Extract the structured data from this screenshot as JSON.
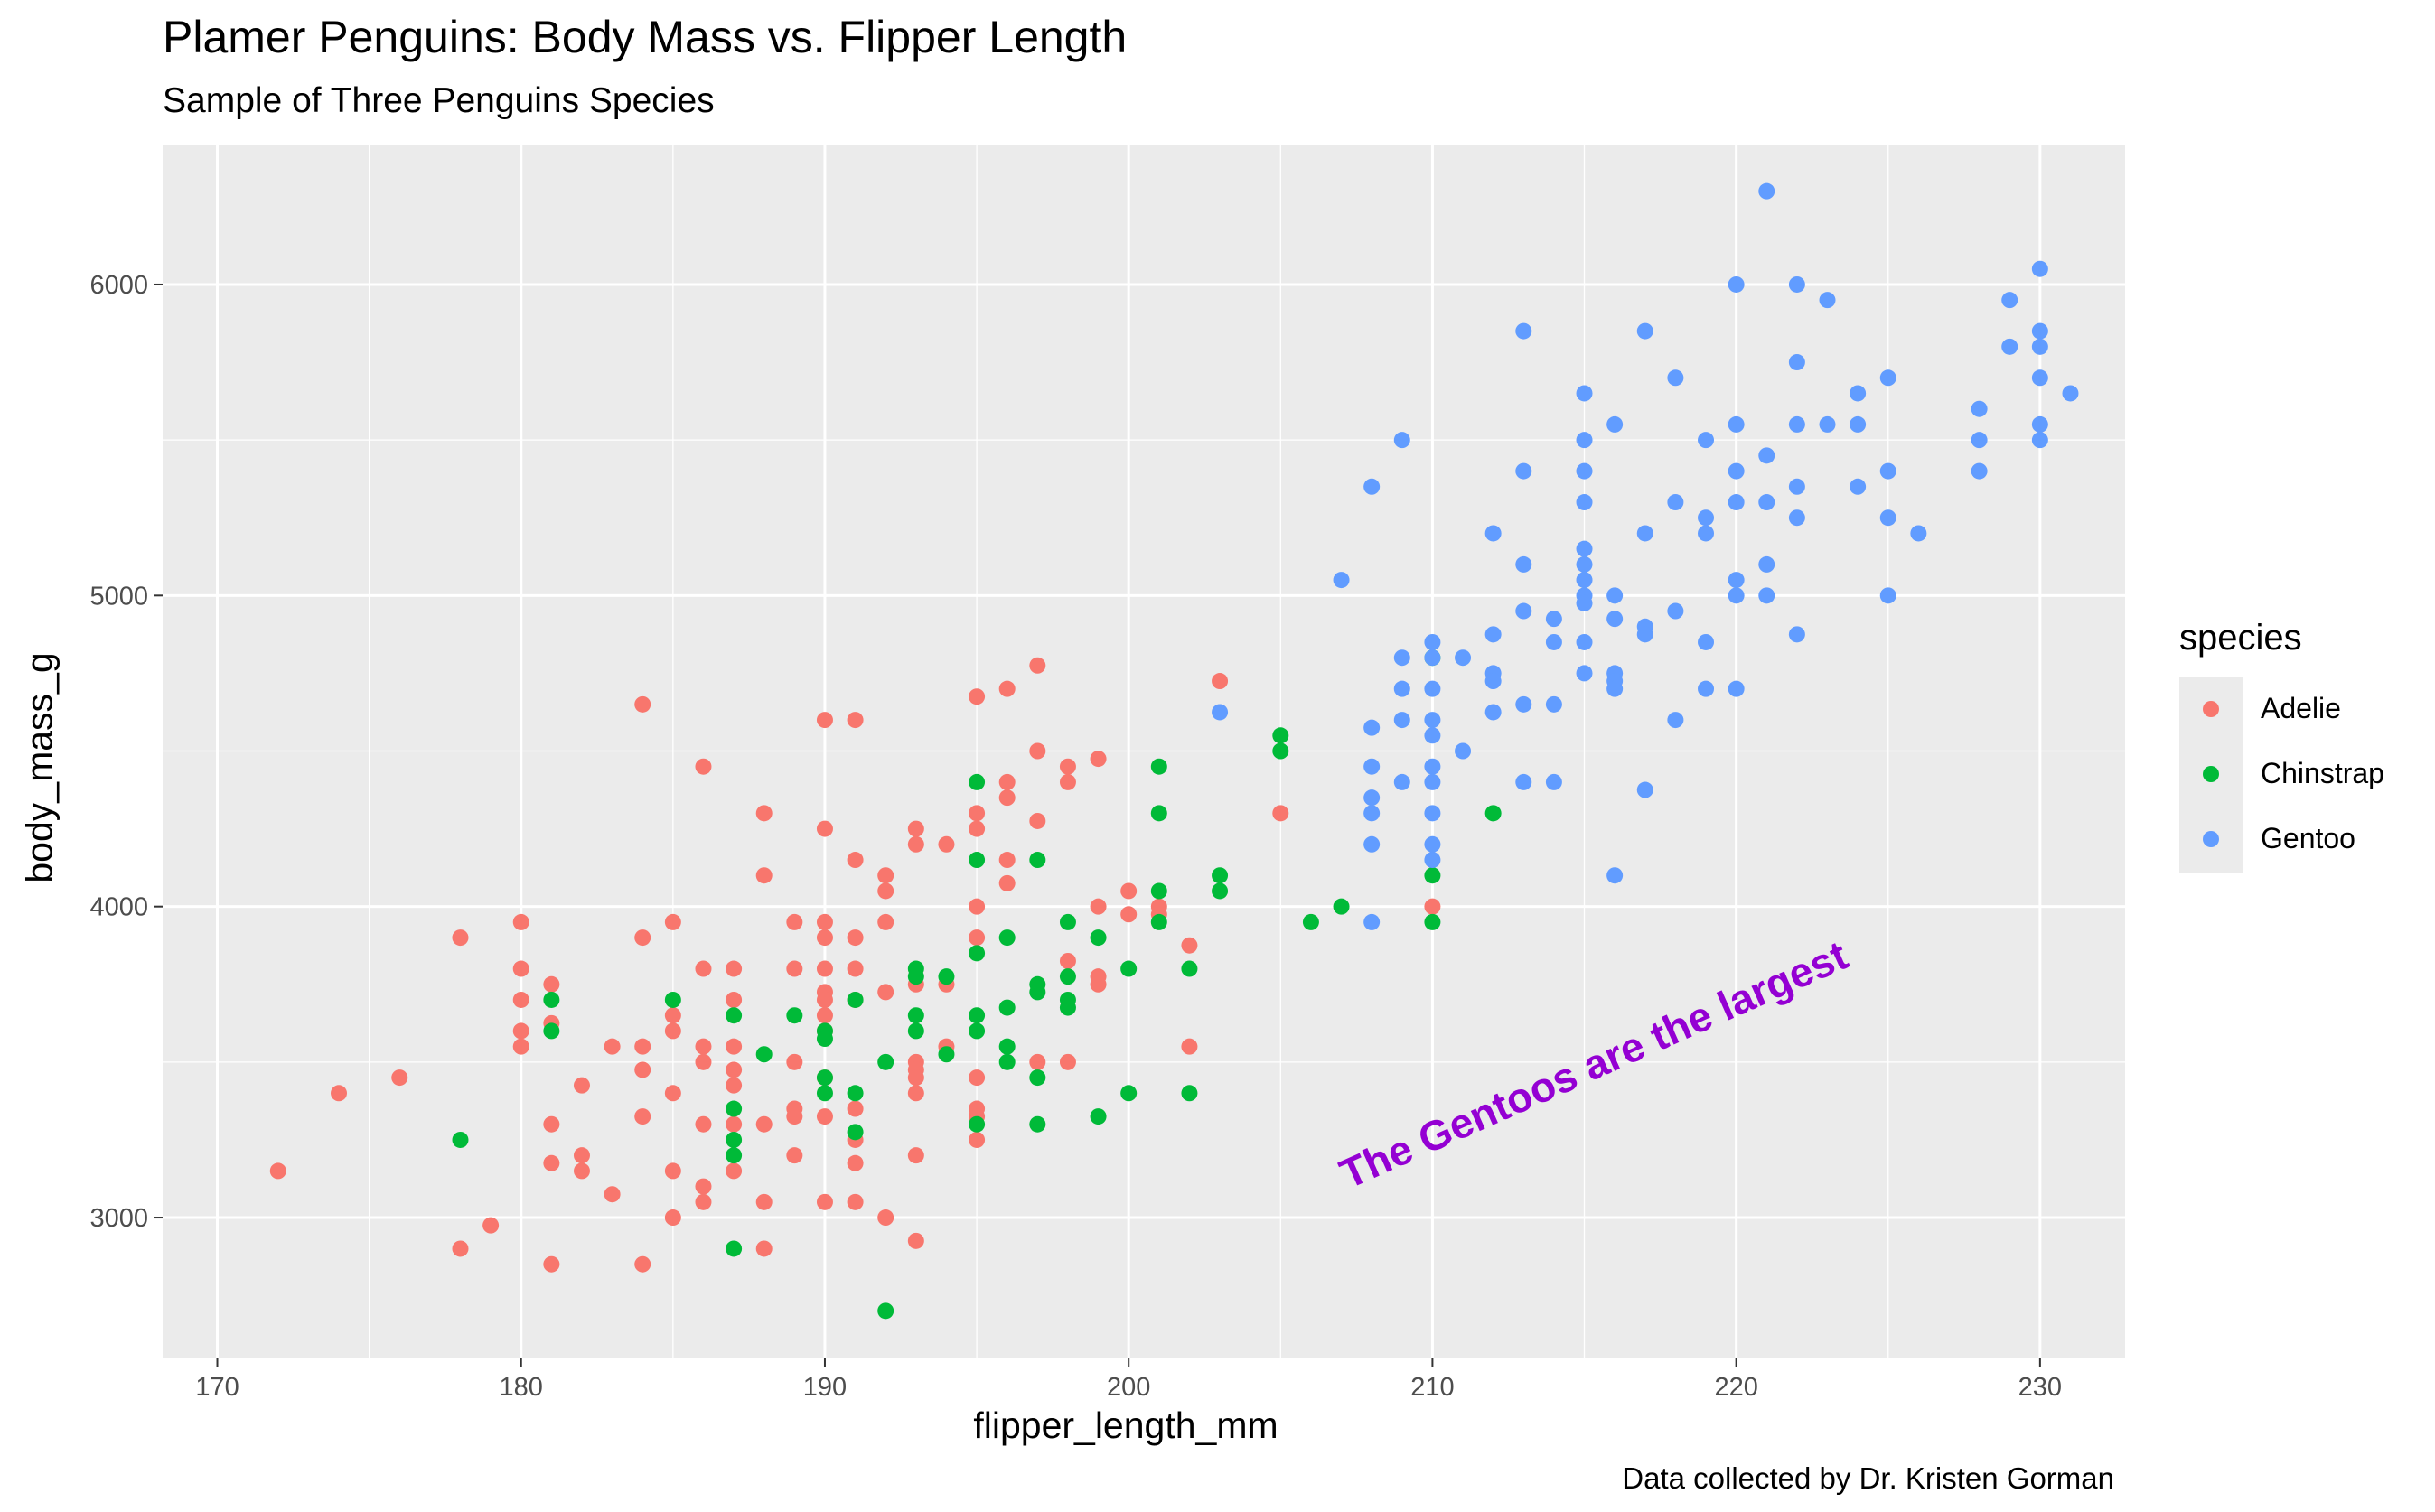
{
  "colors": {
    "Adelie": "#F8766D",
    "Chinstrap": "#00BA38",
    "Gentoo": "#619CFF",
    "annotation": "#9400D3"
  },
  "chart_data": {
    "type": "scatter",
    "title": "Plamer Penguins: Body Mass vs. Flipper Length",
    "subtitle": "Sample of Three Penguins Species",
    "caption": "Data collected by Dr. Kristen Gorman",
    "xlabel": "flipper_length_mm",
    "ylabel": "body_mass_g",
    "xlim": [
      168.2,
      232.8
    ],
    "ylim": [
      2550,
      6450
    ],
    "xticks": [
      170,
      180,
      190,
      200,
      210,
      220,
      230
    ],
    "yticks": [
      3000,
      4000,
      5000,
      6000
    ],
    "grid": true,
    "legend": {
      "title": "species",
      "placement": "right",
      "entries": [
        "Adelie",
        "Chinstrap",
        "Gentoo"
      ]
    },
    "annotation": {
      "text": "The Gentoos are the largest",
      "x": 210,
      "y": 3470,
      "angle_deg": -24
    },
    "series": [
      {
        "name": "Adelie",
        "points": [
          [
            172,
            3150
          ],
          [
            174,
            3400
          ],
          [
            176,
            3450
          ],
          [
            178,
            3900
          ],
          [
            178,
            2900
          ],
          [
            179,
            2975
          ],
          [
            180,
            3950
          ],
          [
            180,
            3800
          ],
          [
            180,
            3700
          ],
          [
            180,
            3600
          ],
          [
            180,
            3550
          ],
          [
            181,
            3750
          ],
          [
            181,
            3625
          ],
          [
            181,
            3300
          ],
          [
            181,
            3175
          ],
          [
            181,
            2850
          ],
          [
            182,
            3425
          ],
          [
            182,
            3200
          ],
          [
            182,
            3150
          ],
          [
            183,
            3550
          ],
          [
            183,
            3075
          ],
          [
            184,
            4650
          ],
          [
            184,
            3900
          ],
          [
            184,
            3550
          ],
          [
            184,
            3475
          ],
          [
            184,
            3325
          ],
          [
            184,
            2850
          ],
          [
            185,
            3950
          ],
          [
            185,
            3650
          ],
          [
            185,
            3600
          ],
          [
            185,
            3400
          ],
          [
            185,
            3150
          ],
          [
            185,
            3000
          ],
          [
            186,
            4450
          ],
          [
            186,
            3800
          ],
          [
            186,
            3550
          ],
          [
            186,
            3500
          ],
          [
            186,
            3300
          ],
          [
            186,
            3100
          ],
          [
            186,
            3050
          ],
          [
            187,
            3800
          ],
          [
            187,
            3700
          ],
          [
            187,
            3550
          ],
          [
            187,
            3475
          ],
          [
            187,
            3425
          ],
          [
            187,
            3300
          ],
          [
            187,
            3150
          ],
          [
            188,
            4300
          ],
          [
            188,
            4100
          ],
          [
            188,
            3300
          ],
          [
            188,
            3050
          ],
          [
            188,
            2900
          ],
          [
            189,
            3950
          ],
          [
            189,
            3800
          ],
          [
            189,
            3500
          ],
          [
            189,
            3350
          ],
          [
            189,
            3325
          ],
          [
            189,
            3200
          ],
          [
            190,
            4600
          ],
          [
            190,
            4250
          ],
          [
            190,
            3950
          ],
          [
            190,
            3900
          ],
          [
            190,
            3800
          ],
          [
            190,
            3725
          ],
          [
            190,
            3700
          ],
          [
            190,
            3650
          ],
          [
            190,
            3600
          ],
          [
            190,
            3450
          ],
          [
            190,
            3325
          ],
          [
            190,
            3050
          ],
          [
            191,
            4600
          ],
          [
            191,
            4150
          ],
          [
            191,
            3900
          ],
          [
            191,
            3800
          ],
          [
            191,
            3700
          ],
          [
            191,
            3350
          ],
          [
            191,
            3250
          ],
          [
            191,
            3175
          ],
          [
            191,
            3050
          ],
          [
            192,
            4100
          ],
          [
            192,
            4050
          ],
          [
            192,
            3950
          ],
          [
            192,
            3725
          ],
          [
            192,
            3000
          ],
          [
            193,
            4250
          ],
          [
            193,
            4200
          ],
          [
            193,
            3750
          ],
          [
            193,
            3500
          ],
          [
            193,
            3475
          ],
          [
            193,
            3450
          ],
          [
            193,
            3400
          ],
          [
            193,
            3200
          ],
          [
            193,
            2925
          ],
          [
            194,
            4200
          ],
          [
            194,
            3750
          ],
          [
            194,
            3550
          ],
          [
            195,
            4675
          ],
          [
            195,
            4300
          ],
          [
            195,
            4250
          ],
          [
            195,
            4000
          ],
          [
            195,
            3900
          ],
          [
            195,
            3450
          ],
          [
            195,
            3350
          ],
          [
            195,
            3325
          ],
          [
            195,
            3250
          ],
          [
            196,
            4700
          ],
          [
            196,
            4400
          ],
          [
            196,
            4350
          ],
          [
            196,
            4150
          ],
          [
            196,
            4075
          ],
          [
            197,
            4775
          ],
          [
            197,
            4500
          ],
          [
            197,
            4275
          ],
          [
            197,
            3500
          ],
          [
            198,
            4450
          ],
          [
            198,
            4400
          ],
          [
            198,
            3825
          ],
          [
            198,
            3500
          ],
          [
            199,
            4475
          ],
          [
            199,
            4000
          ],
          [
            199,
            3775
          ],
          [
            199,
            3750
          ],
          [
            200,
            4050
          ],
          [
            200,
            3975
          ],
          [
            201,
            4000
          ],
          [
            201,
            3975
          ],
          [
            202,
            3875
          ],
          [
            202,
            3550
          ],
          [
            203,
            4725
          ],
          [
            205,
            4300
          ],
          [
            210,
            4000
          ]
        ]
      },
      {
        "name": "Chinstrap",
        "points": [
          [
            178,
            3250
          ],
          [
            181,
            3700
          ],
          [
            181,
            3600
          ],
          [
            185,
            3700
          ],
          [
            187,
            3650
          ],
          [
            187,
            3350
          ],
          [
            187,
            3250
          ],
          [
            187,
            3200
          ],
          [
            187,
            2900
          ],
          [
            188,
            3525
          ],
          [
            189,
            3650
          ],
          [
            190,
            3600
          ],
          [
            190,
            3575
          ],
          [
            190,
            3450
          ],
          [
            190,
            3400
          ],
          [
            191,
            3700
          ],
          [
            191,
            3400
          ],
          [
            191,
            3275
          ],
          [
            192,
            3500
          ],
          [
            192,
            2700
          ],
          [
            193,
            3800
          ],
          [
            193,
            3775
          ],
          [
            193,
            3650
          ],
          [
            193,
            3600
          ],
          [
            194,
            3775
          ],
          [
            194,
            3525
          ],
          [
            195,
            4400
          ],
          [
            195,
            4150
          ],
          [
            195,
            3850
          ],
          [
            195,
            3650
          ],
          [
            195,
            3600
          ],
          [
            195,
            3300
          ],
          [
            196,
            3900
          ],
          [
            196,
            3675
          ],
          [
            196,
            3550
          ],
          [
            196,
            3500
          ],
          [
            197,
            4150
          ],
          [
            197,
            3750
          ],
          [
            197,
            3725
          ],
          [
            197,
            3450
          ],
          [
            197,
            3300
          ],
          [
            198,
            3950
          ],
          [
            198,
            3775
          ],
          [
            198,
            3700
          ],
          [
            198,
            3675
          ],
          [
            199,
            3900
          ],
          [
            199,
            3325
          ],
          [
            200,
            3800
          ],
          [
            200,
            3400
          ],
          [
            201,
            4450
          ],
          [
            201,
            4300
          ],
          [
            201,
            4050
          ],
          [
            201,
            3950
          ],
          [
            202,
            3800
          ],
          [
            202,
            3400
          ],
          [
            203,
            4100
          ],
          [
            203,
            4050
          ],
          [
            205,
            4550
          ],
          [
            205,
            4500
          ],
          [
            206,
            3950
          ],
          [
            207,
            4000
          ],
          [
            210,
            4800
          ],
          [
            210,
            4100
          ],
          [
            210,
            3950
          ],
          [
            212,
            4300
          ]
        ]
      },
      {
        "name": "Gentoo",
        "points": [
          [
            203,
            4625
          ],
          [
            207,
            5050
          ],
          [
            208,
            5350
          ],
          [
            208,
            4575
          ],
          [
            208,
            4450
          ],
          [
            208,
            4350
          ],
          [
            208,
            4300
          ],
          [
            208,
            4200
          ],
          [
            208,
            3950
          ],
          [
            209,
            5500
          ],
          [
            209,
            4800
          ],
          [
            209,
            4700
          ],
          [
            209,
            4600
          ],
          [
            209,
            4400
          ],
          [
            210,
            4850
          ],
          [
            210,
            4800
          ],
          [
            210,
            4700
          ],
          [
            210,
            4600
          ],
          [
            210,
            4550
          ],
          [
            210,
            4450
          ],
          [
            210,
            4400
          ],
          [
            210,
            4300
          ],
          [
            210,
            4200
          ],
          [
            210,
            4150
          ],
          [
            211,
            4800
          ],
          [
            211,
            4500
          ],
          [
            212,
            5200
          ],
          [
            212,
            4875
          ],
          [
            212,
            4750
          ],
          [
            212,
            4725
          ],
          [
            212,
            4625
          ],
          [
            213,
            5850
          ],
          [
            213,
            5400
          ],
          [
            213,
            5100
          ],
          [
            213,
            4950
          ],
          [
            213,
            4650
          ],
          [
            213,
            4400
          ],
          [
            214,
            4925
          ],
          [
            214,
            4850
          ],
          [
            214,
            4650
          ],
          [
            214,
            4400
          ],
          [
            215,
            5650
          ],
          [
            215,
            5500
          ],
          [
            215,
            5400
          ],
          [
            215,
            5300
          ],
          [
            215,
            5150
          ],
          [
            215,
            5100
          ],
          [
            215,
            5050
          ],
          [
            215,
            5000
          ],
          [
            215,
            4975
          ],
          [
            215,
            4850
          ],
          [
            215,
            4750
          ],
          [
            216,
            5550
          ],
          [
            216,
            5000
          ],
          [
            216,
            4925
          ],
          [
            216,
            4750
          ],
          [
            216,
            4725
          ],
          [
            216,
            4700
          ],
          [
            216,
            4100
          ],
          [
            217,
            5850
          ],
          [
            217,
            5200
          ],
          [
            217,
            4900
          ],
          [
            217,
            4875
          ],
          [
            217,
            4375
          ],
          [
            218,
            5700
          ],
          [
            218,
            5300
          ],
          [
            218,
            4950
          ],
          [
            218,
            4600
          ],
          [
            219,
            5500
          ],
          [
            219,
            5250
          ],
          [
            219,
            5200
          ],
          [
            219,
            4850
          ],
          [
            219,
            4700
          ],
          [
            220,
            6000
          ],
          [
            220,
            5550
          ],
          [
            220,
            5400
          ],
          [
            220,
            5300
          ],
          [
            220,
            5050
          ],
          [
            220,
            5000
          ],
          [
            220,
            4700
          ],
          [
            221,
            6300
          ],
          [
            221,
            5450
          ],
          [
            221,
            5300
          ],
          [
            221,
            5100
          ],
          [
            221,
            5000
          ],
          [
            222,
            6000
          ],
          [
            222,
            5750
          ],
          [
            222,
            5550
          ],
          [
            222,
            5350
          ],
          [
            222,
            5250
          ],
          [
            222,
            4875
          ],
          [
            223,
            5950
          ],
          [
            223,
            5550
          ],
          [
            224,
            5650
          ],
          [
            224,
            5550
          ],
          [
            224,
            5350
          ],
          [
            225,
            5700
          ],
          [
            225,
            5400
          ],
          [
            225,
            5250
          ],
          [
            225,
            5000
          ],
          [
            226,
            5200
          ],
          [
            228,
            5600
          ],
          [
            228,
            5500
          ],
          [
            228,
            5400
          ],
          [
            229,
            5950
          ],
          [
            229,
            5800
          ],
          [
            230,
            6050
          ],
          [
            230,
            5850
          ],
          [
            230,
            5800
          ],
          [
            230,
            5700
          ],
          [
            230,
            5550
          ],
          [
            230,
            5500
          ],
          [
            231,
            5650
          ]
        ]
      }
    ]
  }
}
